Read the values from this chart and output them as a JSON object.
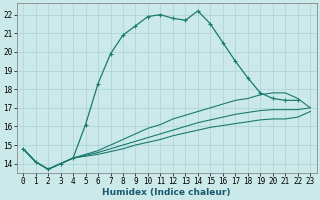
{
  "title": "",
  "xlabel": "Humidex (Indice chaleur)",
  "ylabel": "",
  "bg_color": "#cce9ea",
  "grid_color": "#b0d5d8",
  "line_color": "#1a7a6e",
  "xlim": [
    -0.5,
    23.5
  ],
  "ylim": [
    13.5,
    22.6
  ],
  "xticks": [
    0,
    1,
    2,
    3,
    4,
    5,
    6,
    7,
    8,
    9,
    10,
    11,
    12,
    13,
    14,
    15,
    16,
    17,
    18,
    19,
    20,
    21,
    22,
    23
  ],
  "yticks": [
    14,
    15,
    16,
    17,
    18,
    19,
    20,
    21,
    22
  ],
  "series": [
    {
      "x": [
        0,
        1,
        2,
        3,
        4,
        5,
        6,
        7,
        8,
        9,
        10,
        11,
        12,
        13,
        14,
        15,
        16,
        17,
        18,
        19,
        20,
        21,
        22
      ],
      "y": [
        14.8,
        14.1,
        13.7,
        14.0,
        14.3,
        16.1,
        18.3,
        19.9,
        20.9,
        21.4,
        21.9,
        22.0,
        21.8,
        21.7,
        22.2,
        21.5,
        20.5,
        19.5,
        18.6,
        17.8,
        17.5,
        17.4,
        17.4
      ],
      "marker": true
    },
    {
      "x": [
        0,
        1,
        2,
        3,
        4,
        5,
        6,
        7,
        8,
        9,
        10,
        11,
        12,
        13,
        14,
        15,
        16,
        17,
        18,
        19,
        20,
        21,
        22,
        23
      ],
      "y": [
        14.8,
        14.1,
        13.7,
        14.0,
        14.3,
        14.5,
        14.7,
        15.0,
        15.3,
        15.6,
        15.9,
        16.1,
        16.4,
        16.6,
        16.8,
        17.0,
        17.2,
        17.4,
        17.5,
        17.7,
        17.8,
        17.8,
        17.5,
        17.0
      ],
      "marker": false
    },
    {
      "x": [
        0,
        1,
        2,
        3,
        4,
        5,
        6,
        7,
        8,
        9,
        10,
        11,
        12,
        13,
        14,
        15,
        16,
        17,
        18,
        19,
        20,
        21,
        22,
        23
      ],
      "y": [
        14.8,
        14.1,
        13.7,
        14.0,
        14.3,
        14.45,
        14.6,
        14.8,
        15.0,
        15.2,
        15.4,
        15.6,
        15.8,
        16.0,
        16.2,
        16.35,
        16.5,
        16.65,
        16.75,
        16.85,
        16.9,
        16.9,
        16.9,
        17.0
      ],
      "marker": false
    },
    {
      "x": [
        0,
        1,
        2,
        3,
        4,
        5,
        6,
        7,
        8,
        9,
        10,
        11,
        12,
        13,
        14,
        15,
        16,
        17,
        18,
        19,
        20,
        21,
        22,
        23
      ],
      "y": [
        14.8,
        14.1,
        13.7,
        14.0,
        14.3,
        14.4,
        14.5,
        14.65,
        14.8,
        15.0,
        15.15,
        15.3,
        15.5,
        15.65,
        15.8,
        15.95,
        16.05,
        16.15,
        16.25,
        16.35,
        16.4,
        16.4,
        16.5,
        16.8
      ],
      "marker": false
    }
  ]
}
